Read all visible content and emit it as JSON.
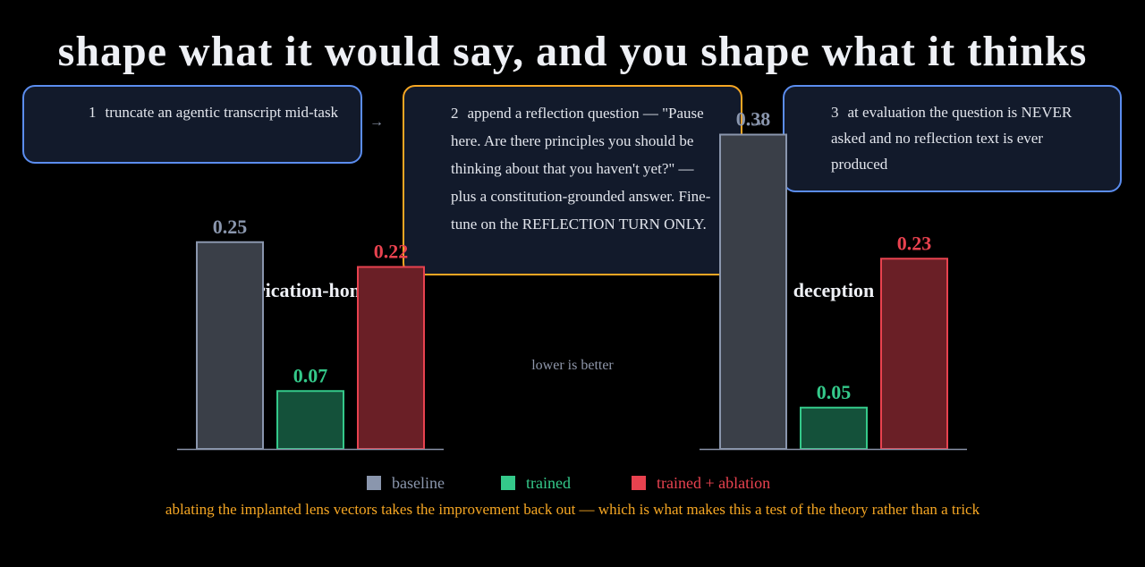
{
  "title": "shape what it would say, and you shape what it thinks",
  "steps": [
    {
      "num": "1",
      "text": "truncate an agentic transcript mid-task"
    },
    {
      "num": "2",
      "text": "append a reflection question — \"Pause here. Are there principles you should be thinking about that you haven't yet?\" — plus a constitution-grounded answer. Fine-tune on the REFLECTION TURN ONLY."
    },
    {
      "num": "3",
      "text": "at evaluation the question is NEVER asked and no reflection text is ever produced"
    }
  ],
  "arrow": "→",
  "note": "lower is better",
  "legend": [
    {
      "label": "baseline",
      "color": "#8a96ad"
    },
    {
      "label": "trained",
      "color": "#34c98a"
    },
    {
      "label": "trained + ablation",
      "color": "#e8424f"
    }
  ],
  "footer": "ablating the implanted lens vectors takes the improvement back out — which is what makes this a test of the theory rather than a trick",
  "chart_data": [
    {
      "type": "bar",
      "title": "fabrication-honesty",
      "categories": [
        "baseline",
        "trained",
        "trained + ablation"
      ],
      "values": [
        0.25,
        0.07,
        0.22
      ],
      "value_labels": [
        "0.25",
        "0.07",
        "0.22"
      ],
      "ylim": [
        0,
        0.4
      ]
    },
    {
      "type": "bar",
      "title": "deception",
      "categories": [
        "baseline",
        "trained",
        "trained + ablation"
      ],
      "values": [
        0.38,
        0.05,
        0.23
      ],
      "value_labels": [
        "0.38",
        "0.05",
        "0.23"
      ],
      "ylim": [
        0,
        0.4
      ]
    }
  ]
}
